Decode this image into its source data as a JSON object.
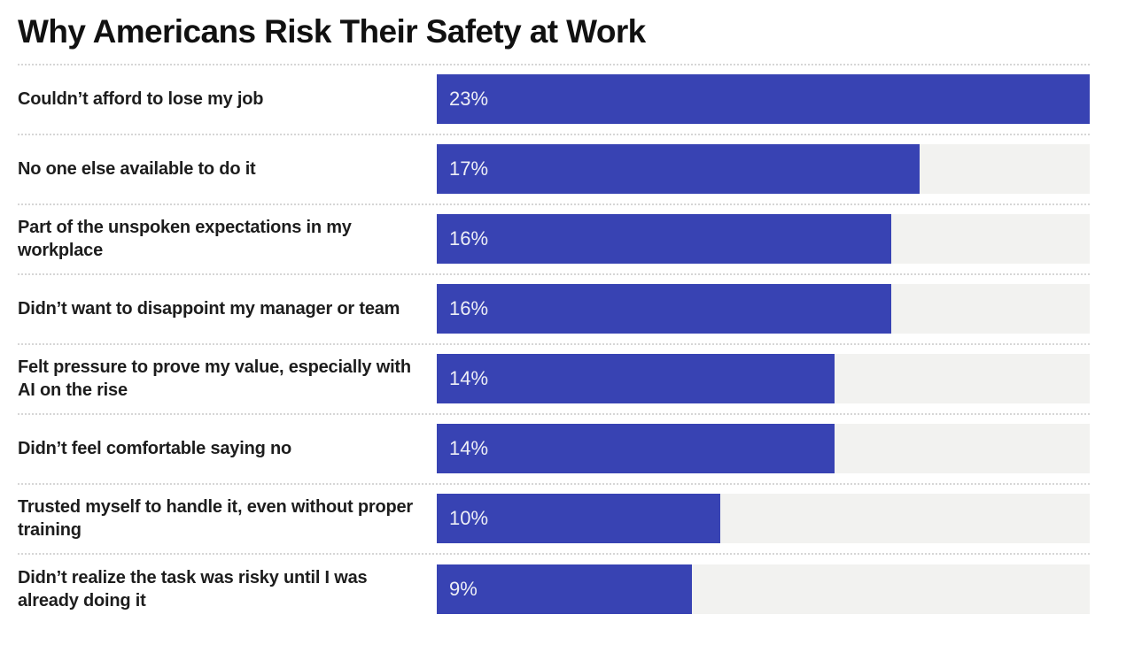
{
  "chart_data": {
    "type": "bar",
    "orientation": "horizontal",
    "title": "Why Americans Risk Their Safety at Work",
    "categories": [
      "Couldn’t afford to lose my job",
      "No one else available to do it",
      "Part of the unspoken expectations in my workplace",
      "Didn’t want to disappoint my manager or team",
      "Felt pressure to prove my value, especially with AI on the rise",
      "Didn’t feel comfortable saying no",
      "Trusted myself to handle it, even without proper training",
      "Didn’t realize the task was risky until I was already doing it"
    ],
    "values": [
      23,
      17,
      16,
      16,
      14,
      14,
      10,
      9
    ],
    "value_labels": [
      "23%",
      "17%",
      "16%",
      "16%",
      "14%",
      "14%",
      "10%",
      "9%"
    ],
    "xlabel": "",
    "ylabel": "",
    "xlim": [
      0,
      23
    ],
    "grid": false,
    "legend": "none",
    "value_label_position": "inside-left",
    "colors": {
      "bar": "#3843b3",
      "track": "#f2f2f0",
      "separator": "#d6d6d6",
      "title": "#111111",
      "label": "#1d1d1d",
      "value_text": "#edeef6",
      "background": "#ffffff"
    }
  }
}
